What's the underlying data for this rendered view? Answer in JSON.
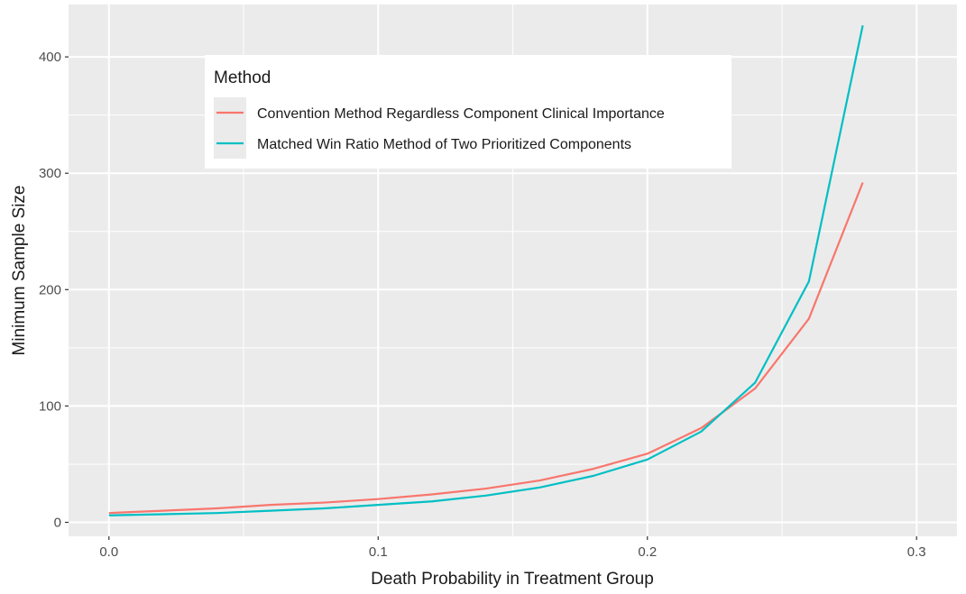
{
  "chart_data": {
    "type": "line",
    "xlabel": "Death Probability in Treatment Group",
    "ylabel": "Minimum Sample Size",
    "xlim": [
      -0.015,
      0.315
    ],
    "ylim": [
      -12,
      445
    ],
    "x_ticks": [
      "0.0",
      "0.1",
      "0.2",
      "0.3"
    ],
    "x_tick_values": [
      0.0,
      0.1,
      0.2,
      0.3
    ],
    "y_ticks": [
      "0",
      "100",
      "200",
      "300",
      "400"
    ],
    "y_tick_values": [
      0,
      100,
      200,
      300,
      400
    ],
    "grid": true,
    "legend": {
      "title": "Method",
      "placement": "top-left"
    },
    "x": [
      0.0,
      0.02,
      0.04,
      0.06,
      0.08,
      0.1,
      0.12,
      0.14,
      0.16,
      0.18,
      0.2,
      0.22,
      0.24,
      0.26,
      0.28
    ],
    "series": [
      {
        "name": "Convention Method Regardless Component Clinical Importance",
        "color": "#F8766D",
        "values": [
          8,
          10,
          12,
          15,
          17,
          20,
          24,
          29,
          36,
          46,
          59,
          81,
          115,
          175,
          292
        ]
      },
      {
        "name": "Matched Win Ratio Method of Two Prioritized Components",
        "color": "#00BFC4",
        "values": [
          6,
          7,
          8,
          10,
          12,
          15,
          18,
          23,
          30,
          40,
          54,
          78,
          120,
          207,
          427
        ]
      }
    ]
  }
}
